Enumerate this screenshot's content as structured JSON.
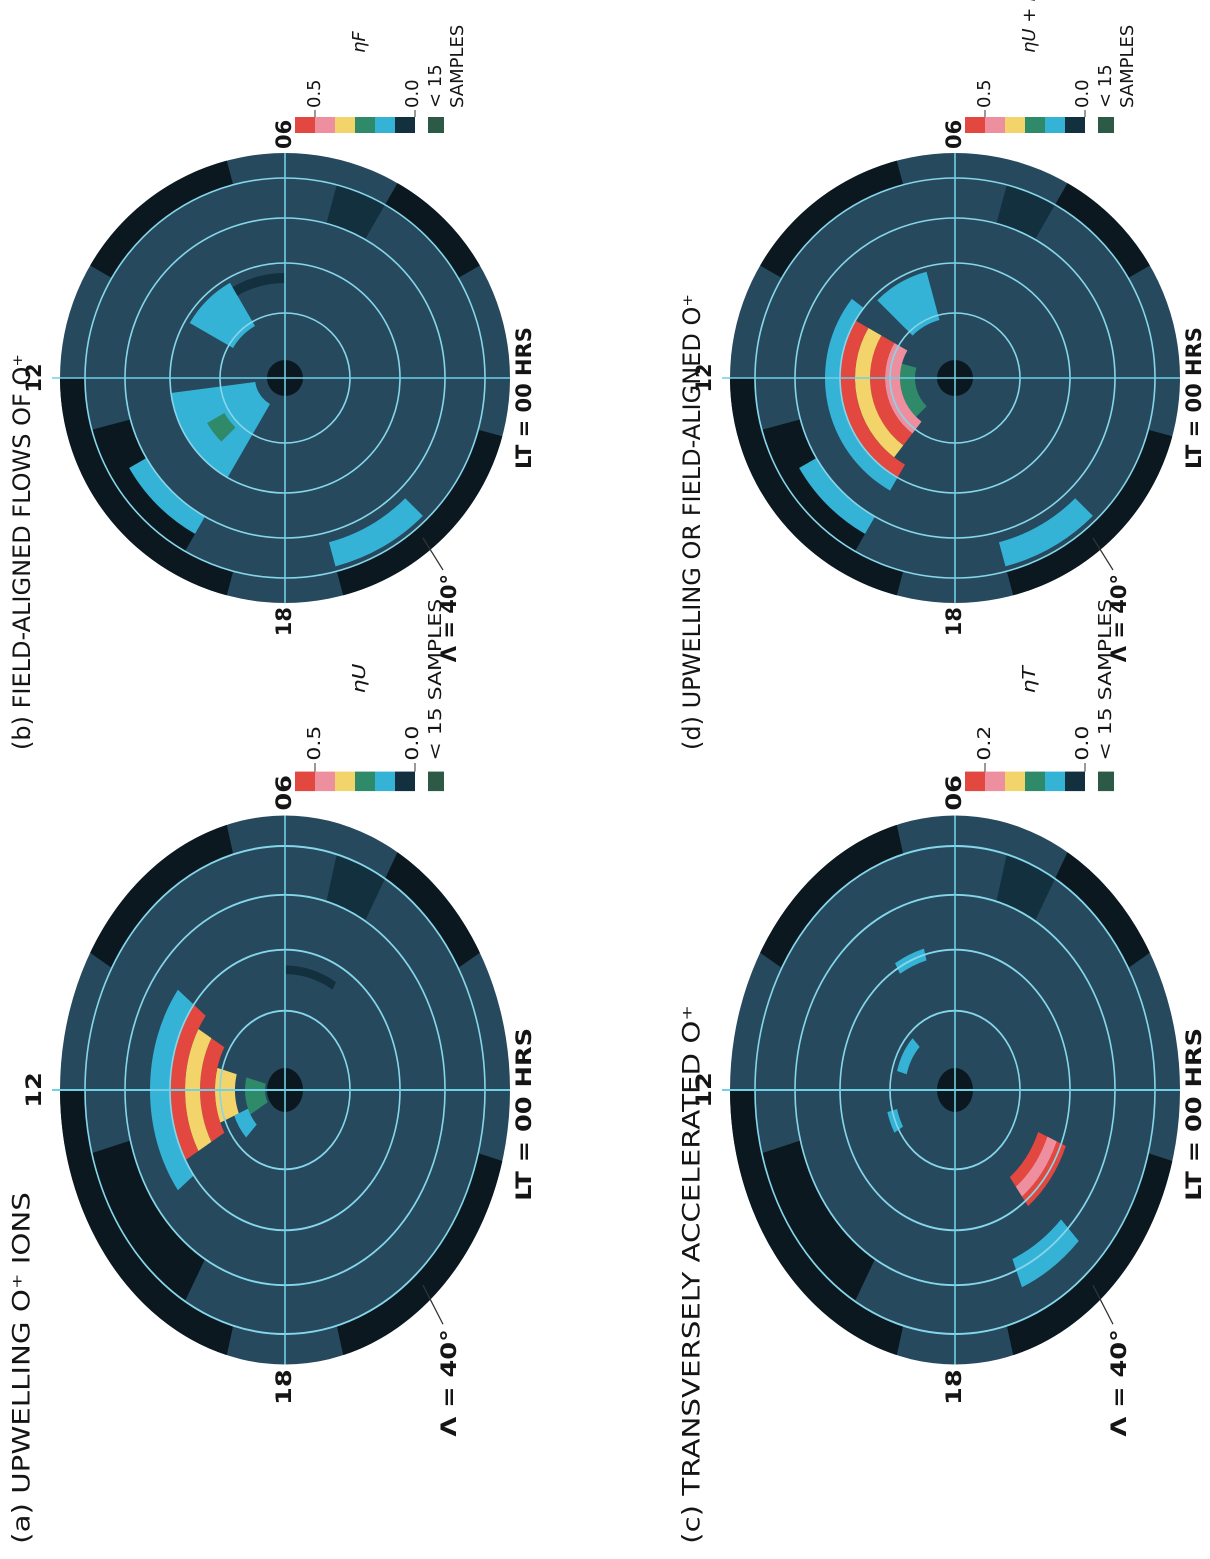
{
  "panels": [
    {
      "title": "(a) UPWELLING O⁺ IONS",
      "noon": "12",
      "dawn": "06",
      "dusk": "18",
      "midnight": "LT = 00 HRS",
      "latitude": "Λ = 40°",
      "scale_max": "0.5",
      "scale_min": "0.0",
      "low_samples": "< 15 SAMPLES",
      "quantity": "ηU"
    },
    {
      "title": "(b) FIELD-ALIGNED FLOWS OF O⁺",
      "noon": "12",
      "dawn": "06",
      "dusk": "18",
      "midnight": "LT = 00 HRS",
      "latitude": "Λ = 40°",
      "scale_max": "0.5",
      "scale_min": "0.0",
      "low_samples": "< 15",
      "samples": "SAMPLES",
      "quantity": "ηF"
    },
    {
      "title": "(c) TRANSVERSELY ACCELERATED O⁺",
      "noon": "12",
      "dawn": "06",
      "dusk": "18",
      "midnight": "LT = 00 HRS",
      "latitude": "Λ = 40°",
      "scale_max": "0.2",
      "scale_min": "0.0",
      "low_samples": "< 15 SAMPLES",
      "quantity": "ηT"
    },
    {
      "title": "(d) UPWELLING OR FIELD-ALIGNED O⁺",
      "noon": "12",
      "dawn": "06",
      "dusk": "18",
      "midnight": "LT = 00 HRS",
      "latitude": "Λ = 40°",
      "scale_max": "0.5",
      "scale_min": "0.0",
      "low_samples": "< 15",
      "samples": "SAMPLES",
      "quantity": "ηU + ηF"
    }
  ]
}
